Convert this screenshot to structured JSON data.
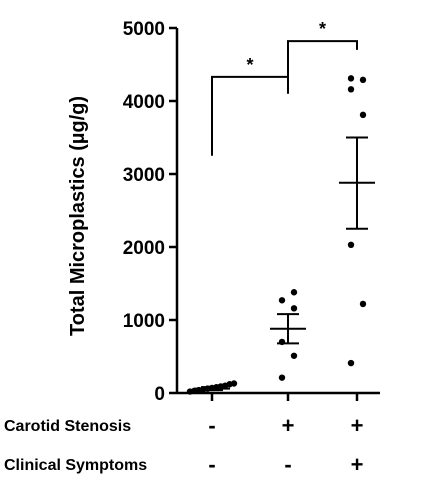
{
  "chart_data": {
    "type": "scatter",
    "ylabel": "Total Microplastics (µg/g)",
    "ylim": [
      0,
      5000
    ],
    "yticks": [
      0,
      1000,
      2000,
      3000,
      4000,
      5000
    ],
    "groups": [
      {
        "points": [
          20,
          30,
          40,
          50,
          60,
          70,
          80,
          90,
          100,
          120,
          130
        ],
        "mean": 60,
        "sem_low": 40,
        "sem_high": 80
      },
      {
        "points": [
          210,
          510,
          700,
          1160,
          1270,
          1380
        ],
        "mean": 880,
        "sem_low": 680,
        "sem_high": 1080
      },
      {
        "points": [
          410,
          1220,
          2030,
          3810,
          4160,
          4290,
          4310
        ],
        "mean": 2880,
        "sem_low": 2250,
        "sem_high": 3500
      }
    ],
    "condition_rows": [
      {
        "label": "Carotid Stenosis",
        "values": [
          "-",
          "+",
          "+"
        ]
      },
      {
        "label": "Clinical Symptoms",
        "values": [
          "-",
          "-",
          "+"
        ]
      }
    ],
    "significance": [
      {
        "from_group": 0,
        "to_group": 1,
        "label": "*",
        "left_drop_to": 3250,
        "right_drop_to": 4100,
        "level": 4330
      },
      {
        "from_group": 1,
        "to_group": 2,
        "label": "*",
        "left_drop_to": 4330,
        "right_drop_to": 4700,
        "level": 4820
      }
    ],
    "grid": false,
    "legend": "none",
    "colors": {
      "points": "#000000",
      "axis": "#000000"
    }
  }
}
